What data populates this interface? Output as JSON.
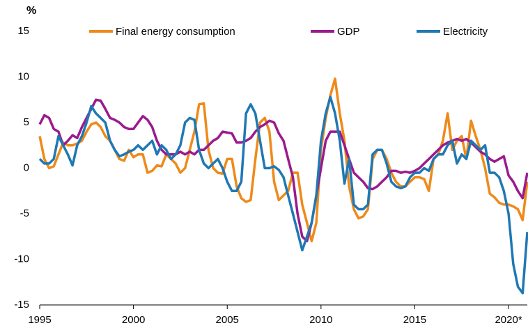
{
  "chart_data": {
    "type": "line",
    "y_label": "%",
    "x": [
      1995,
      1995.25,
      1995.5,
      1995.75,
      1996,
      1996.25,
      1996.5,
      1996.75,
      1997,
      1997.25,
      1997.5,
      1997.75,
      1998,
      1998.25,
      1998.5,
      1998.75,
      1999,
      1999.25,
      1999.5,
      1999.75,
      2000,
      2000.25,
      2000.5,
      2000.75,
      2001,
      2001.25,
      2001.5,
      2001.75,
      2002,
      2002.25,
      2002.5,
      2002.75,
      2003,
      2003.25,
      2003.5,
      2003.75,
      2004,
      2004.25,
      2004.5,
      2004.75,
      2005,
      2005.25,
      2005.5,
      2005.75,
      2006,
      2006.25,
      2006.5,
      2006.75,
      2007,
      2007.25,
      2007.5,
      2007.75,
      2008,
      2008.25,
      2008.5,
      2008.75,
      2009,
      2009.25,
      2009.5,
      2009.75,
      2010,
      2010.25,
      2010.5,
      2010.75,
      2011,
      2011.25,
      2011.5,
      2011.75,
      2012,
      2012.25,
      2012.5,
      2012.75,
      2013,
      2013.25,
      2013.5,
      2013.75,
      2014,
      2014.25,
      2014.5,
      2014.75,
      2015,
      2015.25,
      2015.5,
      2015.75,
      2016,
      2016.25,
      2016.5,
      2016.75,
      2017,
      2017.25,
      2017.5,
      2017.75,
      2018,
      2018.25,
      2018.5,
      2018.75,
      2019,
      2019.25,
      2019.5,
      2019.75,
      2020,
      2020.25,
      2020.5,
      2020.75,
      2021
    ],
    "series": [
      {
        "name": "Final energy consumption",
        "color": "#ee8a1a",
        "values": [
          3.5,
          1,
          0,
          0.2,
          1.5,
          2.8,
          2.5,
          2.5,
          2.7,
          3,
          4,
          4.8,
          5,
          4.5,
          3.5,
          3,
          2,
          1,
          0.8,
          2,
          1.2,
          1.5,
          1.5,
          -0.5,
          -0.3,
          0.3,
          0.2,
          1.5,
          1,
          0.5,
          -0.5,
          0,
          2,
          4,
          7,
          7.1,
          2,
          0,
          -0.5,
          -0.6,
          1,
          1,
          -2,
          -3.3,
          -3.7,
          -3.5,
          1,
          5,
          5.5,
          4,
          -1.5,
          -3.5,
          -3,
          -2.5,
          -0.5,
          -0.5,
          -4,
          -6,
          -8,
          -6,
          2,
          5.5,
          8,
          9.8,
          6,
          3,
          -2,
          -4.5,
          -5.5,
          -5.3,
          -4.5,
          1,
          2,
          2,
          1,
          -0.5,
          -1.5,
          -2,
          -2,
          -1.5,
          -1,
          -1,
          -1.2,
          -2.5,
          1,
          1.5,
          3,
          6,
          2,
          3,
          3.5,
          1,
          5.2,
          3.5,
          2,
          0,
          -2.8,
          -3.2,
          -3.8,
          -4,
          -4,
          -4.2,
          -4.5,
          -5.7,
          -1.5
        ]
      },
      {
        "name": "GDP",
        "color": "#9a1b8e",
        "values": [
          4.8,
          5.8,
          5.5,
          4.3,
          4,
          2.5,
          3,
          3.6,
          3.3,
          4.5,
          5.5,
          6.5,
          7.5,
          7.4,
          6.5,
          5.5,
          5.3,
          5,
          4.5,
          4.3,
          4.3,
          5,
          5.7,
          5.3,
          4.5,
          3,
          2,
          1.5,
          1.5,
          1.5,
          1.8,
          1.5,
          1.8,
          1.5,
          2,
          2,
          2.5,
          3,
          3.3,
          4,
          3.9,
          3.8,
          2.8,
          2.8,
          3,
          3.3,
          4,
          4.5,
          4.8,
          5.2,
          5,
          3.8,
          3,
          1,
          -1,
          -5,
          -7.5,
          -8,
          -6,
          -3,
          0,
          3,
          4,
          4,
          4,
          2.5,
          1,
          -0.5,
          -1,
          -1.5,
          -2.2,
          -2.3,
          -2,
          -1.5,
          -1,
          -0.3,
          -0.3,
          -0.5,
          -0.4,
          -0.5,
          -0.3,
          0,
          0.5,
          1,
          1.5,
          2,
          2.5,
          2.8,
          3,
          3.2,
          3,
          3.2,
          2.8,
          2.3,
          1.8,
          1.5,
          1,
          0.7,
          1,
          1.3,
          -0.8,
          -1.5,
          -2.5,
          -3.3,
          -0.5
        ]
      },
      {
        "name": "Electricity",
        "color": "#1f78b4",
        "values": [
          1,
          0.5,
          0.5,
          1,
          3.5,
          2.5,
          1.5,
          0.3,
          2.5,
          3.5,
          5,
          6.8,
          6,
          5.5,
          5,
          3,
          2,
          1.3,
          1.5,
          1.8,
          2,
          2.5,
          2,
          2.5,
          3,
          1.5,
          2.5,
          2,
          1,
          1.5,
          2.5,
          5,
          5.5,
          5.3,
          2,
          0.5,
          0,
          0.5,
          1,
          0,
          -1.5,
          -2.5,
          -2.5,
          -1.5,
          6,
          7,
          6,
          3,
          0,
          0,
          0.2,
          -0.2,
          -1,
          -3,
          -5,
          -7,
          -9,
          -7.5,
          -6,
          -3,
          3,
          6,
          7.8,
          6,
          3,
          -1.7,
          1,
          -4,
          -4.5,
          -4.5,
          -4,
          1.5,
          2,
          2,
          0.5,
          -1.5,
          -2,
          -2.2,
          -2,
          -1,
          -0.5,
          -0.5,
          0,
          -0.3,
          1,
          1.5,
          1.5,
          2.5,
          3,
          0.5,
          1.5,
          1,
          3,
          2.5,
          2,
          2.5,
          -0.5,
          -0.5,
          -1,
          -2.5,
          -5,
          -10.5,
          -13,
          -13.7,
          -7
        ]
      }
    ],
    "xlim": [
      1995,
      2021
    ],
    "xticks": [
      1995,
      2000,
      2005,
      2010,
      2015,
      {
        "value": 2020,
        "label": "2020*"
      }
    ],
    "ylim": [
      -15,
      15
    ],
    "yticks": [
      -15,
      -10,
      -5,
      0,
      5,
      10,
      15
    ],
    "grid": false
  }
}
